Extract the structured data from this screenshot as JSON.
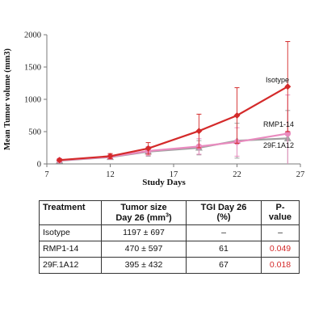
{
  "chart_data": {
    "type": "line",
    "xlabel": "Study Days",
    "ylabel": "Mean Tumor volume (mm3)",
    "xlim": [
      7,
      27
    ],
    "ylim": [
      0,
      2000
    ],
    "xticks": [
      7,
      12,
      17,
      22,
      27
    ],
    "yticks": [
      0,
      500,
      1000,
      1500,
      2000
    ],
    "grid": false,
    "legend": "inline labels at line ends",
    "x": [
      8,
      12,
      15,
      19,
      22,
      26
    ],
    "series": [
      {
        "name": "Isotype",
        "color": "#d42a2a",
        "marker": "diamond",
        "values": [
          60,
          120,
          240,
          510,
          750,
          1197
        ],
        "errors": [
          20,
          40,
          90,
          260,
          430,
          697
        ]
      },
      {
        "name": "RMP1-14",
        "color": "#e98bbf",
        "marker": "circle",
        "values": [
          55,
          110,
          200,
          270,
          340,
          470
        ],
        "errors": [
          20,
          35,
          70,
          120,
          220,
          597
        ]
      },
      {
        "name": "29F.1A12",
        "color": "#a0a0a0",
        "marker": "triangle",
        "values": [
          50,
          105,
          190,
          250,
          360,
          395
        ],
        "errors": [
          20,
          35,
          70,
          110,
          270,
          432
        ]
      }
    ]
  },
  "table": {
    "headers": {
      "treatment": "Treatment",
      "size_line1": "Tumor size",
      "size_line2_prefix": "Day 26 (mm",
      "size_line2_sup": "3",
      "size_line2_suffix": ")",
      "tgi_line1": "TGI Day 26",
      "tgi_line2": "(%)",
      "pvalue": "P-value"
    },
    "rows": [
      {
        "treatment": "Isotype",
        "size": "1197 ± 697",
        "tgi": "–",
        "pvalue": "–"
      },
      {
        "treatment": "RMP1-14",
        "size": "470 ± 597",
        "tgi": "61",
        "pvalue": "0.049"
      },
      {
        "treatment": "29F.1A12",
        "size": "395 ± 432",
        "tgi": "67",
        "pvalue": "0.018"
      }
    ]
  }
}
